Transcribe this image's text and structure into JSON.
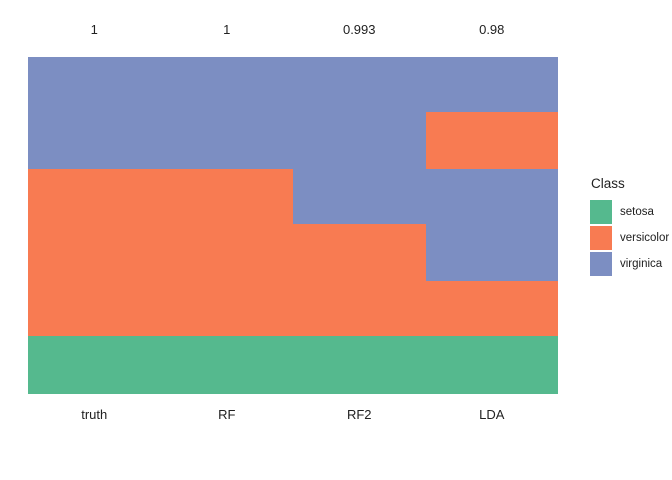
{
  "background_color": "#ffffff",
  "text_color": "#212121",
  "chart_data": {
    "type": "heatmap",
    "description": "Stacked categorical column plot of predicted iris class per observation (rows sorted by true class) for four columns: truth and three models. Numbers above columns are accuracy scores.",
    "columns": [
      "truth",
      "RF",
      "RF2",
      "LDA"
    ],
    "column_scores": [
      "1",
      "1",
      "0.993",
      "0.98"
    ],
    "x_axis_labels": [
      "truth",
      "RF",
      "RF2",
      "LDA"
    ],
    "class_colors": {
      "setosa": "#55B98E",
      "versicolor": "#F87B52",
      "virginica": "#7C8EC2"
    },
    "column_segments": [
      {
        "column": "truth",
        "segments": [
          {
            "class": "virginica",
            "pct": 33.1
          },
          {
            "class": "versicolor",
            "pct": 49.8
          },
          {
            "class": "setosa",
            "pct": 17.1
          }
        ]
      },
      {
        "column": "RF",
        "segments": [
          {
            "class": "virginica",
            "pct": 33.1
          },
          {
            "class": "versicolor",
            "pct": 49.8
          },
          {
            "class": "setosa",
            "pct": 17.1
          }
        ]
      },
      {
        "column": "RF2",
        "segments": [
          {
            "class": "virginica",
            "pct": 49.6
          },
          {
            "class": "versicolor",
            "pct": 33.3
          },
          {
            "class": "setosa",
            "pct": 17.1
          }
        ]
      },
      {
        "column": "LDA",
        "segments": [
          {
            "class": "virginica",
            "pct": 16.3
          },
          {
            "class": "versicolor",
            "pct": 16.8
          },
          {
            "class": "virginica",
            "pct": 33.3
          },
          {
            "class": "versicolor",
            "pct": 16.5
          },
          {
            "class": "setosa",
            "pct": 17.1
          }
        ]
      }
    ],
    "legend": {
      "title": "Class",
      "position": "right",
      "entries": [
        {
          "label": "setosa",
          "color": "#55B98E"
        },
        {
          "label": "versicolor",
          "color": "#F87B52"
        },
        {
          "label": "virginica",
          "color": "#7C8EC2"
        }
      ]
    },
    "grid": false,
    "axis_lines": false
  }
}
